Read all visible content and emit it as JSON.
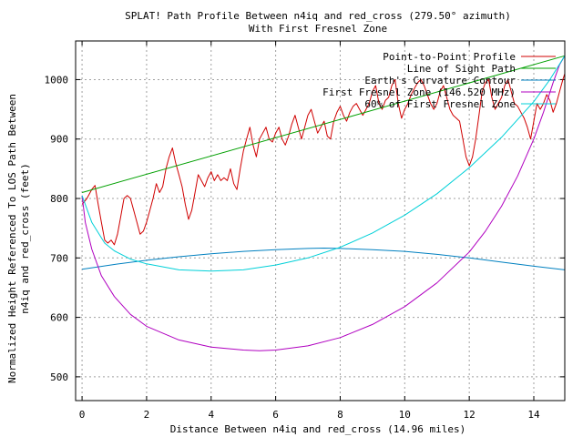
{
  "chart_data": {
    "type": "line",
    "title": "SPLAT! Path Profile Between n4iq and red_cross (279.50° azimuth)",
    "subtitle": "With First Fresnel Zone",
    "xlabel": "Distance Between n4iq and red_cross (14.96 miles)",
    "ylabel_line1": "Normalized Height Referenced To LOS Path Between",
    "ylabel_line2": "n4iq and red_cross (feet)",
    "xlim": [
      -0.2,
      14.96
    ],
    "ylim": [
      460,
      1065
    ],
    "x_ticks": [
      "0",
      "2",
      "4",
      "6",
      "8",
      "10",
      "12",
      "14"
    ],
    "x_tick_values": [
      0,
      2,
      4,
      6,
      8,
      10,
      12,
      14
    ],
    "y_ticks": [
      "500",
      "600",
      "700",
      "800",
      "900",
      "1000"
    ],
    "y_tick_values": [
      500,
      600,
      700,
      800,
      900,
      1000
    ],
    "grid": true,
    "legend_position": "top-right",
    "series": [
      {
        "name": "Point-to-Point Profile",
        "color": "#d00000",
        "x": [
          0,
          0.15,
          0.3,
          0.4,
          0.5,
          0.6,
          0.7,
          0.8,
          0.9,
          1.0,
          1.1,
          1.2,
          1.3,
          1.4,
          1.5,
          1.6,
          1.7,
          1.8,
          1.9,
          2.0,
          2.1,
          2.2,
          2.3,
          2.4,
          2.5,
          2.6,
          2.7,
          2.8,
          2.9,
          3.0,
          3.1,
          3.2,
          3.3,
          3.4,
          3.5,
          3.6,
          3.7,
          3.8,
          3.9,
          4.0,
          4.1,
          4.2,
          4.3,
          4.4,
          4.5,
          4.6,
          4.7,
          4.8,
          4.9,
          5.0,
          5.1,
          5.2,
          5.3,
          5.4,
          5.5,
          5.6,
          5.7,
          5.8,
          5.9,
          6.0,
          6.1,
          6.2,
          6.3,
          6.4,
          6.5,
          6.6,
          6.7,
          6.8,
          6.9,
          7.0,
          7.1,
          7.2,
          7.3,
          7.4,
          7.5,
          7.6,
          7.7,
          7.8,
          7.9,
          8.0,
          8.1,
          8.2,
          8.3,
          8.4,
          8.5,
          8.6,
          8.7,
          8.8,
          8.9,
          9.0,
          9.1,
          9.2,
          9.3,
          9.4,
          9.5,
          9.6,
          9.7,
          9.8,
          9.9,
          10.0,
          10.1,
          10.2,
          10.3,
          10.4,
          10.5,
          10.6,
          10.7,
          10.8,
          10.9,
          11.0,
          11.1,
          11.2,
          11.3,
          11.4,
          11.5,
          11.6,
          11.7,
          11.8,
          11.9,
          12.0,
          12.1,
          12.2,
          12.3,
          12.4,
          12.5,
          12.6,
          12.7,
          12.8,
          12.9,
          13.0,
          13.1,
          13.2,
          13.3,
          13.4,
          13.5,
          13.6,
          13.7,
          13.8,
          13.9,
          14.0,
          14.1,
          14.2,
          14.3,
          14.4,
          14.5,
          14.6,
          14.7,
          14.8,
          14.9,
          14.96
        ],
        "y": [
          790,
          800,
          815,
          822,
          790,
          760,
          730,
          725,
          730,
          722,
          740,
          770,
          800,
          805,
          800,
          780,
          760,
          740,
          745,
          760,
          780,
          800,
          825,
          810,
          820,
          850,
          870,
          885,
          860,
          840,
          820,
          790,
          765,
          780,
          810,
          840,
          830,
          820,
          835,
          845,
          830,
          840,
          830,
          835,
          830,
          850,
          825,
          815,
          850,
          880,
          900,
          920,
          890,
          870,
          900,
          910,
          920,
          900,
          895,
          910,
          920,
          900,
          890,
          905,
          925,
          940,
          920,
          900,
          920,
          940,
          950,
          930,
          910,
          920,
          930,
          905,
          900,
          930,
          945,
          955,
          940,
          930,
          945,
          955,
          960,
          950,
          940,
          950,
          960,
          980,
          990,
          960,
          950,
          965,
          970,
          990,
          1000,
          960,
          935,
          950,
          960,
          975,
          985,
          995,
          1000,
          990,
          975,
          960,
          950,
          960,
          980,
          990,
          970,
          950,
          940,
          935,
          930,
          900,
          870,
          855,
          870,
          900,
          940,
          980,
          995,
          1000,
          970,
          950,
          960,
          970,
          990,
          1000,
          980,
          960,
          955,
          945,
          935,
          920,
          900,
          930,
          960,
          950,
          960,
          975,
          965,
          945,
          960,
          980,
          1000,
          1010
        ]
      },
      {
        "name": "Line of Sight Path",
        "color": "#00a000",
        "x": [
          0,
          14.96
        ],
        "y": [
          810,
          1040
        ]
      },
      {
        "name": "Earth's Curvature Contour",
        "color": "#0080c0",
        "x": [
          0,
          1,
          2,
          3,
          4,
          5,
          6,
          7,
          7.5,
          8,
          9,
          10,
          11,
          12,
          13,
          14,
          14.96
        ],
        "y": [
          681,
          689,
          696,
          702,
          707,
          711,
          714,
          716,
          716.5,
          716,
          714,
          711,
          706,
          700,
          693,
          686,
          680
        ]
      },
      {
        "name": "First Fresnel Zone (146.520 MHz)",
        "color": "#b000c0",
        "x": [
          0,
          0.1,
          0.3,
          0.6,
          1,
          1.5,
          2,
          3,
          4,
          5,
          5.5,
          6,
          7,
          8,
          9,
          10,
          11,
          12,
          12.5,
          13,
          13.5,
          14,
          14.3,
          14.6,
          14.8,
          14.96
        ],
        "y": [
          805,
          760,
          715,
          670,
          635,
          605,
          585,
          562,
          550,
          545,
          544,
          545,
          552,
          566,
          588,
          618,
          658,
          710,
          745,
          787,
          838,
          900,
          945,
          995,
          1025,
          1040
        ]
      },
      {
        "name": "60% of First Fresnel Zone",
        "color": "#00d0d8",
        "x": [
          0,
          0.3,
          0.7,
          1,
          1.5,
          2,
          3,
          4,
          5,
          6,
          7,
          8,
          9,
          10,
          11,
          12,
          13,
          14,
          14.5,
          14.96
        ],
        "y": [
          805,
          760,
          725,
          712,
          698,
          690,
          680,
          678,
          680,
          688,
          700,
          718,
          742,
          772,
          808,
          852,
          903,
          963,
          1000,
          1040
        ]
      }
    ]
  }
}
